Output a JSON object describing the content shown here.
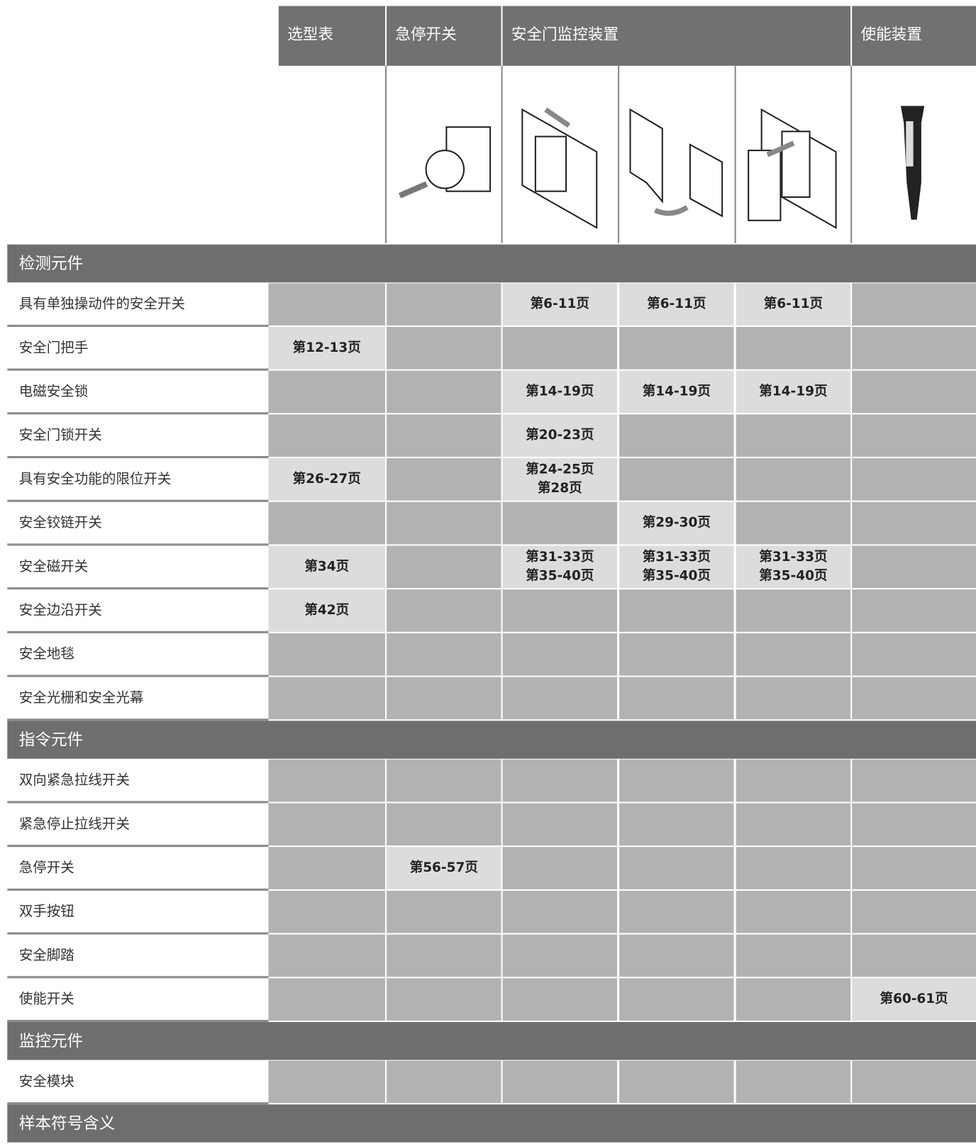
{
  "header": {
    "columns": [
      "选型表",
      "急停开关",
      "安全门监控装置",
      "使能装置"
    ]
  },
  "sections": [
    {
      "title": "检测元件",
      "rows": [
        {
          "label": "具有单独操动件的安全开关",
          "cells": [
            null,
            null,
            [
              "第6-11页"
            ],
            [
              "第6-11页"
            ],
            [
              "第6-11页"
            ],
            null
          ]
        },
        {
          "label": "安全门把手",
          "cells": [
            [
              "第12-13页"
            ],
            null,
            null,
            null,
            null,
            null
          ]
        },
        {
          "label": "电磁安全锁",
          "cells": [
            null,
            null,
            [
              "第14-19页"
            ],
            [
              "第14-19页"
            ],
            [
              "第14-19页"
            ],
            null
          ]
        },
        {
          "label": "安全门锁开关",
          "cells": [
            null,
            null,
            [
              "第20-23页"
            ],
            null,
            null,
            null
          ]
        },
        {
          "label": "具有安全功能的限位开关",
          "cells": [
            [
              "第26-27页"
            ],
            null,
            [
              "第24-25页",
              "第28页"
            ],
            null,
            null,
            null
          ]
        },
        {
          "label": "安全铰链开关",
          "cells": [
            null,
            null,
            null,
            [
              "第29-30页"
            ],
            null,
            null
          ]
        },
        {
          "label": "安全磁开关",
          "cells": [
            [
              "第34页"
            ],
            null,
            [
              "第31-33页",
              "第35-40页"
            ],
            [
              "第31-33页",
              "第35-40页"
            ],
            [
              "第31-33页",
              "第35-40页"
            ],
            null
          ]
        },
        {
          "label": "安全边沿开关",
          "cells": [
            [
              "第42页"
            ],
            null,
            null,
            null,
            null,
            null
          ]
        },
        {
          "label": "安全地毯",
          "cells": [
            null,
            null,
            null,
            null,
            null,
            null
          ]
        },
        {
          "label": "安全光栅和安全光幕",
          "cells": [
            null,
            null,
            null,
            null,
            null,
            null
          ]
        }
      ]
    },
    {
      "title": "指令元件",
      "rows": [
        {
          "label": "双向紧急拉线开关",
          "cells": [
            null,
            null,
            null,
            null,
            null,
            null
          ]
        },
        {
          "label": "紧急停止拉线开关",
          "cells": [
            null,
            null,
            null,
            null,
            null,
            null
          ]
        },
        {
          "label": "急停开关",
          "cells": [
            null,
            [
              "第56-57页"
            ],
            null,
            null,
            null,
            null
          ]
        },
        {
          "label": "双手按钮",
          "cells": [
            null,
            null,
            null,
            null,
            null,
            null
          ]
        },
        {
          "label": "安全脚踏",
          "cells": [
            null,
            null,
            null,
            null,
            null,
            null
          ]
        },
        {
          "label": "使能开关",
          "cells": [
            null,
            null,
            null,
            null,
            null,
            [
              "第60-61页"
            ]
          ]
        }
      ]
    },
    {
      "title": "监控元件",
      "rows": [
        {
          "label": "安全模块",
          "cells": [
            null,
            null,
            null,
            null,
            null,
            null
          ]
        }
      ]
    },
    {
      "title": "样本符号含义",
      "rows": []
    }
  ]
}
